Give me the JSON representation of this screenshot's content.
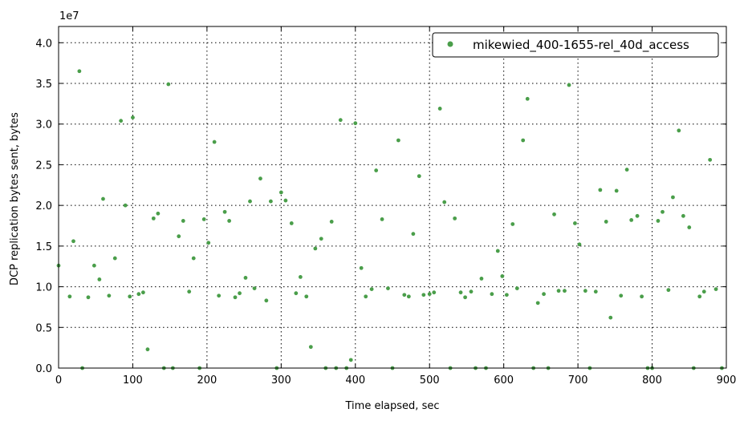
{
  "chart_data": {
    "type": "scatter",
    "title": "",
    "xlabel": "Time elapsed, sec",
    "ylabel": "DCP replication bytes sent, bytes",
    "y_offset_label": "1e7",
    "y_scale": 10000000,
    "xlim": [
      0,
      900
    ],
    "ylim": [
      0,
      42000000
    ],
    "x_ticks": [
      0,
      100,
      200,
      300,
      400,
      500,
      600,
      700,
      800,
      900
    ],
    "x_tick_labels": [
      "0",
      "100",
      "200",
      "300",
      "400",
      "500",
      "600",
      "700",
      "800",
      "900"
    ],
    "y_ticks": [
      0,
      5000000,
      10000000,
      15000000,
      20000000,
      25000000,
      30000000,
      35000000,
      40000000
    ],
    "y_tick_labels": [
      "0.0",
      "0.5",
      "1.0",
      "1.5",
      "2.0",
      "2.5",
      "3.0",
      "3.5",
      "4.0"
    ],
    "grid": true,
    "legend_position": "top-right",
    "color": "#4a9e4a",
    "series": [
      {
        "name": "mikewied_400-1655-rel_40d_access",
        "x": [
          0,
          15,
          20,
          28,
          32,
          40,
          48,
          55,
          60,
          68,
          76,
          84,
          90,
          96,
          100,
          108,
          114,
          120,
          128,
          134,
          142,
          148,
          154,
          162,
          168,
          176,
          182,
          190,
          196,
          202,
          210,
          216,
          224,
          230,
          238,
          244,
          252,
          258,
          264,
          272,
          280,
          286,
          294,
          300,
          306,
          314,
          320,
          326,
          334,
          340,
          346,
          354,
          360,
          368,
          374,
          380,
          388,
          394,
          400,
          408,
          414,
          422,
          428,
          436,
          444,
          450,
          458,
          466,
          472,
          478,
          486,
          492,
          500,
          506,
          514,
          520,
          528,
          534,
          542,
          548,
          556,
          562,
          570,
          576,
          584,
          592,
          598,
          604,
          612,
          618,
          626,
          632,
          640,
          646,
          654,
          660,
          668,
          674,
          682,
          688,
          696,
          702,
          710,
          716,
          724,
          730,
          738,
          744,
          752,
          758,
          766,
          772,
          780,
          786,
          794,
          800,
          808,
          814,
          822,
          828,
          836,
          842,
          850,
          856,
          864,
          870,
          878,
          886,
          894
        ],
        "y": [
          12600000,
          8800000,
          15600000,
          36500000,
          0,
          8700000,
          12600000,
          10900000,
          20800000,
          8900000,
          13500000,
          30400000,
          20000000,
          8800000,
          30800000,
          9100000,
          9300000,
          2300000,
          18400000,
          19000000,
          0,
          34900000,
          0,
          16200000,
          18100000,
          9400000,
          13500000,
          0,
          18300000,
          15400000,
          27800000,
          8900000,
          19200000,
          18100000,
          8700000,
          9200000,
          11100000,
          20500000,
          9800000,
          23300000,
          8300000,
          20500000,
          0,
          21600000,
          20600000,
          17800000,
          9200000,
          11200000,
          8800000,
          2600000,
          14700000,
          15900000,
          0,
          18000000,
          0,
          30500000,
          0,
          1000000,
          30100000,
          12300000,
          8800000,
          9700000,
          24300000,
          18300000,
          9800000,
          0,
          28000000,
          9000000,
          8800000,
          16500000,
          23600000,
          9000000,
          9100000,
          9300000,
          31900000,
          20400000,
          0,
          18400000,
          9300000,
          8700000,
          9400000,
          0,
          11000000,
          0,
          9100000,
          14400000,
          11300000,
          9000000,
          17700000,
          9800000,
          28000000,
          33100000,
          0,
          8000000,
          9100000,
          0,
          18900000,
          9500000,
          9500000,
          34800000,
          17800000,
          15200000,
          9500000,
          0,
          9400000,
          21900000,
          18000000,
          6200000,
          21800000,
          8900000,
          24400000,
          18200000,
          18700000,
          8800000,
          0,
          0,
          18100000,
          19200000,
          9600000,
          21000000,
          29200000,
          18700000,
          17300000,
          0,
          8800000,
          9400000,
          25600000,
          9700000,
          0
        ]
      }
    ]
  }
}
